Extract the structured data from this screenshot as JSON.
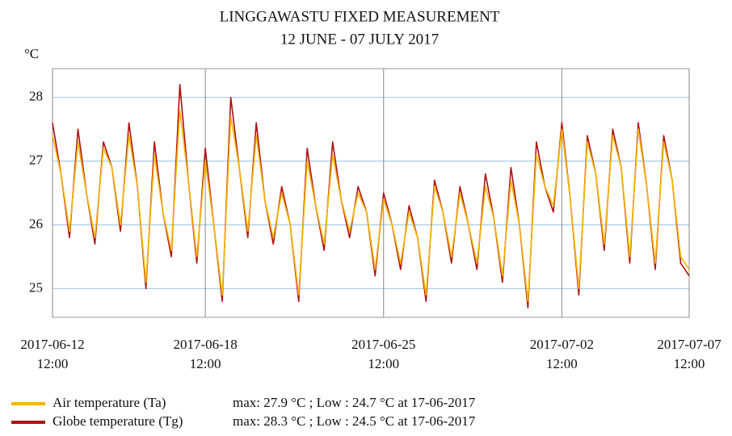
{
  "chart_data": {
    "type": "line",
    "title": "LINGGAWASTU FIXED MEASUREMENT",
    "subtitle": "12 JUNE - 07 JULY 2017",
    "y_label": "°C",
    "x": [
      "2017-06-12 12:00",
      "2017-06-12 20:00",
      "2017-06-13 04:00",
      "2017-06-13 12:00",
      "2017-06-13 20:00",
      "2017-06-14 04:00",
      "2017-06-14 12:00",
      "2017-06-14 20:00",
      "2017-06-15 04:00",
      "2017-06-15 12:00",
      "2017-06-15 20:00",
      "2017-06-16 04:00",
      "2017-06-16 12:00",
      "2017-06-16 20:00",
      "2017-06-17 04:00",
      "2017-06-17 12:00",
      "2017-06-17 20:00",
      "2017-06-18 04:00",
      "2017-06-18 12:00",
      "2017-06-18 20:00",
      "2017-06-19 04:00",
      "2017-06-19 12:00",
      "2017-06-19 20:00",
      "2017-06-20 04:00",
      "2017-06-20 12:00",
      "2017-06-20 20:00",
      "2017-06-21 04:00",
      "2017-06-21 12:00",
      "2017-06-21 20:00",
      "2017-06-22 04:00",
      "2017-06-22 12:00",
      "2017-06-22 20:00",
      "2017-06-23 04:00",
      "2017-06-23 12:00",
      "2017-06-23 20:00",
      "2017-06-24 04:00",
      "2017-06-24 12:00",
      "2017-06-24 20:00",
      "2017-06-25 04:00",
      "2017-06-25 12:00",
      "2017-06-25 20:00",
      "2017-06-26 04:00",
      "2017-06-26 12:00",
      "2017-06-26 20:00",
      "2017-06-27 04:00",
      "2017-06-27 12:00",
      "2017-06-27 20:00",
      "2017-06-28 04:00",
      "2017-06-28 12:00",
      "2017-06-28 20:00",
      "2017-06-29 04:00",
      "2017-06-29 12:00",
      "2017-06-29 20:00",
      "2017-06-30 04:00",
      "2017-06-30 12:00",
      "2017-06-30 20:00",
      "2017-07-01 04:00",
      "2017-07-01 12:00",
      "2017-07-01 20:00",
      "2017-07-02 04:00",
      "2017-07-02 12:00",
      "2017-07-02 20:00",
      "2017-07-03 04:00",
      "2017-07-03 12:00",
      "2017-07-03 20:00",
      "2017-07-04 04:00",
      "2017-07-04 12:00",
      "2017-07-04 20:00",
      "2017-07-05 04:00",
      "2017-07-05 12:00",
      "2017-07-05 20:00",
      "2017-07-06 04:00",
      "2017-07-06 12:00",
      "2017-07-06 20:00",
      "2017-07-07 04:00",
      "2017-07-07 12:00"
    ],
    "series": [
      {
        "name": "Globe temperature (Tg)",
        "color": "#b01010",
        "annotation": "max: 28.3 °C ; Low : 24.5 °C at 17-06-2017",
        "values": [
          27.6,
          26.8,
          25.8,
          27.5,
          26.5,
          25.7,
          27.3,
          26.9,
          25.9,
          27.6,
          26.6,
          25.0,
          27.3,
          26.2,
          25.5,
          28.2,
          26.7,
          25.4,
          27.2,
          26.0,
          24.8,
          28.0,
          26.9,
          25.8,
          27.6,
          26.4,
          25.7,
          26.6,
          26.0,
          24.8,
          27.2,
          26.3,
          25.6,
          27.3,
          26.4,
          25.8,
          26.6,
          26.2,
          25.2,
          26.5,
          26.0,
          25.3,
          26.3,
          25.8,
          24.8,
          26.7,
          26.2,
          25.4,
          26.6,
          26.0,
          25.3,
          26.8,
          26.1,
          25.1,
          26.9,
          26.0,
          24.7,
          27.3,
          26.6,
          26.2,
          27.6,
          26.4,
          24.9,
          27.4,
          26.8,
          25.6,
          27.5,
          26.9,
          25.4,
          27.6,
          26.6,
          25.3,
          27.4,
          26.7,
          25.4,
          25.2
        ]
      },
      {
        "name": "Air temperature (Ta)",
        "color": "#f7b500",
        "annotation": "max: 27.9 °C ; Low : 24.7 °C at 17-06-2017",
        "values": [
          27.4,
          26.8,
          25.9,
          27.3,
          26.5,
          25.8,
          27.2,
          26.9,
          26.0,
          27.4,
          26.6,
          25.1,
          27.1,
          26.2,
          25.6,
          27.8,
          26.7,
          25.5,
          27.0,
          26.0,
          24.9,
          27.7,
          26.9,
          25.9,
          27.4,
          26.4,
          25.8,
          26.5,
          26.0,
          24.9,
          27.0,
          26.3,
          25.7,
          27.1,
          26.4,
          25.9,
          26.5,
          26.2,
          25.3,
          26.4,
          26.0,
          25.4,
          26.2,
          25.8,
          24.9,
          26.6,
          26.2,
          25.5,
          26.5,
          26.0,
          25.4,
          26.6,
          26.1,
          25.2,
          26.7,
          26.0,
          24.8,
          27.1,
          26.6,
          26.3,
          27.5,
          26.4,
          25.0,
          27.3,
          26.8,
          25.7,
          27.4,
          26.9,
          25.5,
          27.5,
          26.6,
          25.4,
          27.3,
          26.7,
          25.5,
          25.3
        ]
      }
    ],
    "xlim": [
      "2017-06-12 12:00",
      "2017-07-07 12:00"
    ],
    "xticks": [
      {
        "value": "2017-06-12 12:00",
        "label": [
          "2017-06-12",
          "12:00"
        ]
      },
      {
        "value": "2017-06-18 12:00",
        "label": [
          "2017-06-18",
          "12:00"
        ]
      },
      {
        "value": "2017-06-25 12:00",
        "label": [
          "2017-06-25",
          "12:00"
        ]
      },
      {
        "value": "2017-07-02 12:00",
        "label": [
          "2017-07-02",
          "12:00"
        ]
      },
      {
        "value": "2017-07-07 12:00",
        "label": [
          "2017-07-07",
          "12:00"
        ]
      }
    ],
    "ylim": [
      24.55,
      28.45
    ],
    "yticks": [
      25,
      26,
      27,
      28
    ],
    "grid": true
  }
}
